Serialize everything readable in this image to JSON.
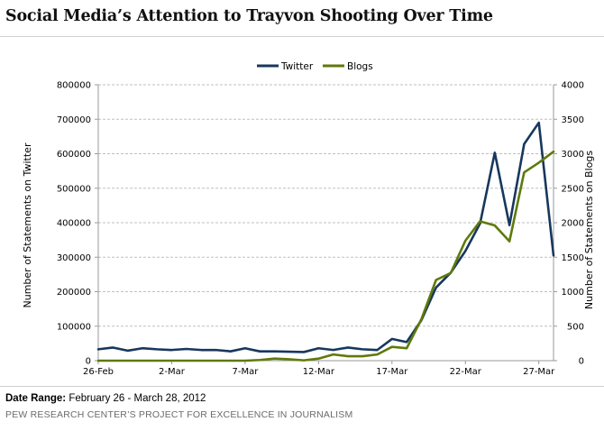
{
  "title": "Social Media’s Attention to Trayvon Shooting Over Time",
  "footer": {
    "date_range_label": "Date Range:",
    "date_range_value": "February 26 - March 28, 2012",
    "source": "PEW RESEARCH CENTER’S PROJECT FOR EXCELLENCE IN JOURNALISM"
  },
  "chart_data": {
    "type": "line",
    "title": "Social Media’s Attention to Trayvon Shooting Over Time",
    "x": [
      "26-Feb",
      "27-Feb",
      "28-Feb",
      "29-Feb",
      "1-Mar",
      "2-Mar",
      "3-Mar",
      "4-Mar",
      "5-Mar",
      "6-Mar",
      "7-Mar",
      "8-Mar",
      "9-Mar",
      "10-Mar",
      "11-Mar",
      "12-Mar",
      "13-Mar",
      "14-Mar",
      "15-Mar",
      "16-Mar",
      "17-Mar",
      "18-Mar",
      "19-Mar",
      "20-Mar",
      "21-Mar",
      "22-Mar",
      "23-Mar",
      "24-Mar",
      "25-Mar",
      "26-Mar",
      "27-Mar",
      "28-Mar"
    ],
    "x_tick_labels": [
      "26-Feb",
      "2-Mar",
      "7-Mar",
      "12-Mar",
      "17-Mar",
      "22-Mar",
      "27-Mar"
    ],
    "ylabel_left": "Number of Statements on Twitter",
    "ylabel_right": "Number of Statements on Blogs",
    "ylim_left": [
      0,
      800000
    ],
    "ylim_right": [
      0,
      4000
    ],
    "yticks_left": [
      0,
      100000,
      200000,
      300000,
      400000,
      500000,
      600000,
      700000,
      800000
    ],
    "yticks_right": [
      0,
      500,
      1000,
      1500,
      2000,
      2500,
      3000,
      3500,
      4000
    ],
    "grid": true,
    "legend_position": "top-center",
    "series": [
      {
        "name": "Twitter",
        "axis": "left",
        "color": "#17375e",
        "values": [
          33000,
          38000,
          29000,
          36000,
          33000,
          31000,
          34000,
          31000,
          31000,
          27000,
          36000,
          27000,
          27000,
          26000,
          25000,
          36000,
          31000,
          38000,
          33000,
          31000,
          63000,
          54000,
          117000,
          212000,
          255000,
          318000,
          398000,
          603000,
          393000,
          628000,
          690000,
          305000
        ]
      },
      {
        "name": "Blogs",
        "axis": "right",
        "color": "#5e7a0b",
        "values": [
          0,
          0,
          0,
          0,
          0,
          0,
          0,
          0,
          0,
          0,
          0,
          10,
          30,
          20,
          5,
          30,
          90,
          65,
          65,
          90,
          200,
          180,
          600,
          1170,
          1270,
          1740,
          2020,
          1960,
          1730,
          2730,
          2870,
          3030
        ]
      }
    ]
  }
}
